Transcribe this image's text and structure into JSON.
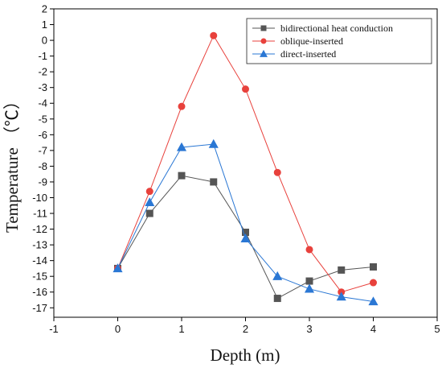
{
  "chart_data": {
    "type": "line",
    "xlabel": "Depth (m)",
    "ylabel": "Temperature （℃）",
    "xlim": [
      -1,
      5
    ],
    "ylim": [
      -17.6,
      2
    ],
    "x_ticks": [
      -1,
      0,
      1,
      2,
      3,
      4,
      5
    ],
    "y_ticks": [
      2,
      1,
      0,
      -1,
      -2,
      -3,
      -4,
      -5,
      -6,
      -7,
      -8,
      -9,
      -10,
      -11,
      -12,
      -13,
      -14,
      -15,
      -16,
      -17
    ],
    "grid": false,
    "legend_position": "top-right",
    "series": [
      {
        "name": "bidirectional heat conduction",
        "marker": "square",
        "color": "#555555",
        "x": [
          0,
          0.5,
          1,
          1.5,
          2,
          2.5,
          3,
          3.5,
          4
        ],
        "y": [
          -14.5,
          -11.0,
          -8.6,
          -9.0,
          -12.2,
          -16.4,
          -15.3,
          -14.6,
          -14.4
        ]
      },
      {
        "name": "oblique-inserted",
        "marker": "circle",
        "color": "#e8413c",
        "x": [
          0,
          0.5,
          1,
          1.5,
          2,
          2.5,
          3,
          3.5,
          4
        ],
        "y": [
          -14.5,
          -9.6,
          -4.2,
          0.3,
          -3.1,
          -8.4,
          -13.3,
          -16.0,
          -15.4
        ]
      },
      {
        "name": "direct-inserted",
        "marker": "triangle",
        "color": "#2a77d4",
        "x": [
          0,
          0.5,
          1,
          1.5,
          2,
          2.5,
          3,
          3.5,
          4
        ],
        "y": [
          -14.5,
          -10.3,
          -6.8,
          -6.6,
          -12.6,
          -15.0,
          -15.8,
          -16.3,
          -16.6
        ]
      }
    ]
  }
}
